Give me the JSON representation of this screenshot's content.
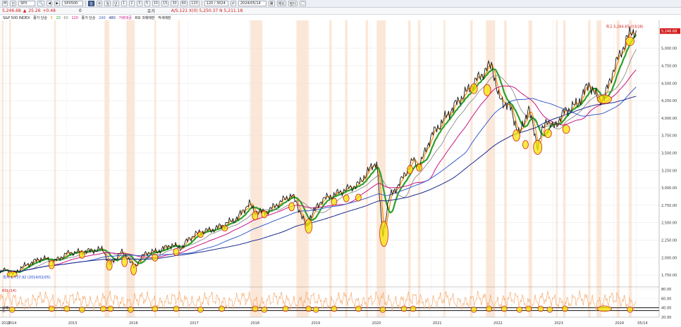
{
  "toolbar": {
    "period_label": "M",
    "exchange_label": "전",
    "symbol_value": "SPX",
    "symbol2_value": "SPX500",
    "timeframes": [
      "일",
      "주",
      "월",
      "년",
      "1",
      "2",
      "3",
      "5",
      "10",
      "15",
      "30",
      "60",
      "120"
    ],
    "range_value": "120 / 3024",
    "date_value": "2024/05/14",
    "settings_label": "해외",
    "filter_label": "필터"
  },
  "quote": {
    "price": "5,246.68",
    "change": "25.26",
    "change_pct": "+0.48",
    "volume": "0",
    "bid_label": "호가",
    "info": "A/S.121 X(0) 5,250.37 N 5,211.18"
  },
  "legend": {
    "symbol": "S&P 500 INDEX",
    "ma_label": "종가 단순",
    "ma_periods": [
      "5",
      "20",
      "60",
      "120"
    ],
    "ma2_label": "종가 단순",
    "ma2_periods": [
      "240",
      "480"
    ],
    "signal_label": "거래대금",
    "rsi_label": "RSI 과매매판",
    "rsi2_label": "적색매판"
  },
  "annotations": {
    "high_label": "최고 5,264.85 (03/28)",
    "low_label": "최저 1,737.92 (2014/02/05)",
    "price_tag": "5,246.68",
    "rsi_label": "RSI (14)",
    "rsi_level_label": "과매",
    "rsi_level_label2": "도"
  },
  "colors": {
    "candle_up": "#d21e1e",
    "candle_down": "#1e3fd2",
    "ma5": "#ff8c00",
    "ma20": "#2ca02c",
    "ma60": "#7f7f7f",
    "ma120": "#c71585",
    "ma240": "#3a5fcd",
    "ma480": "#1a2a8c",
    "rsi": "#f4a15d",
    "highlight_fill": "#f5e400",
    "highlight_stroke": "#d42020",
    "shade": "#f6c9a8"
  },
  "chart_data": {
    "type": "line",
    "title": "S&P 500 INDEX",
    "ylim": [
      1600,
      5400
    ],
    "y_ticks": [
      "5,000.00",
      "4,750.00",
      "4,500.00",
      "4,250.00",
      "4,000.00",
      "3,750.00",
      "3,500.00",
      "3,250.00",
      "3,000.00",
      "2,750.00",
      "2,500.00",
      "2,250.00",
      "2,000.00",
      "1,750.00"
    ],
    "y_tick_values": [
      5000,
      4750,
      4500,
      4250,
      4000,
      3750,
      3500,
      3250,
      3000,
      2750,
      2500,
      2250,
      2000,
      1750
    ],
    "x_ticks": [
      "2013",
      "2014",
      "2015",
      "2016",
      "2017",
      "2018",
      "2019",
      "2020",
      "2021",
      "2022",
      "2023",
      "2024",
      "05/14"
    ],
    "x_tick_values": [
      2013.9,
      2014,
      2015,
      2016,
      2017,
      2018,
      2019,
      2020,
      2021,
      2022,
      2023,
      2024,
      2024.37
    ],
    "xlim": [
      2013.9,
      2024.75
    ],
    "series": [
      {
        "x": [
          2013.9,
          2014.0,
          2014.1,
          2014.3,
          2014.5,
          2014.6,
          2014.8,
          2015.0,
          2015.2,
          2015.4,
          2015.6,
          2015.7,
          2015.9,
          2016.0,
          2016.1,
          2016.3,
          2016.5,
          2016.7,
          2016.9,
          2017.0,
          2017.2,
          2017.4,
          2017.6,
          2017.8,
          2018.0,
          2018.1,
          2018.3,
          2018.5,
          2018.7,
          2018.8,
          2018.95,
          2019.0,
          2019.2,
          2019.4,
          2019.6,
          2019.8,
          2019.95,
          2020.1,
          2020.2,
          2020.3,
          2020.5,
          2020.7,
          2020.8,
          2021.0,
          2021.2,
          2021.4,
          2021.6,
          2021.8,
          2022.0,
          2022.1,
          2022.3,
          2022.45,
          2022.6,
          2022.75,
          2022.9,
          2023.0,
          2023.2,
          2023.4,
          2023.6,
          2023.75,
          2023.85,
          2024.0,
          2024.2,
          2024.3,
          2024.37
        ],
        "y": [
          1780,
          1840,
          1760,
          1880,
          1960,
          1990,
          1950,
          2060,
          2080,
          2100,
          2120,
          1900,
          2080,
          2010,
          1860,
          2070,
          2090,
          2180,
          2140,
          2270,
          2370,
          2400,
          2480,
          2560,
          2780,
          2650,
          2660,
          2790,
          2900,
          2750,
          2420,
          2580,
          2830,
          2900,
          2980,
          3050,
          3230,
          3380,
          2300,
          2850,
          3100,
          3400,
          3300,
          3750,
          3970,
          4200,
          4400,
          4600,
          4780,
          4300,
          4150,
          3750,
          4150,
          3600,
          4000,
          3850,
          4100,
          4200,
          4500,
          4250,
          4300,
          4700,
          5100,
          5250,
          5246.68
        ]
      }
    ]
  }
}
